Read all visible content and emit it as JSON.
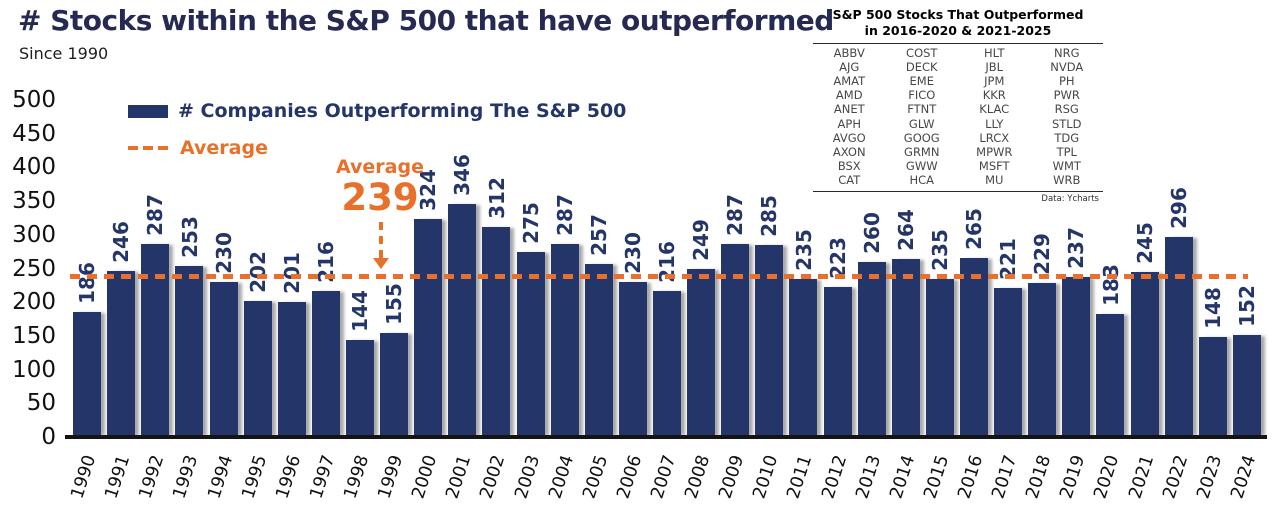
{
  "header": {
    "title": "# Stocks within the S&P 500 that have outperformed",
    "subtitle": "Since 1990"
  },
  "legend": {
    "series_label": "# Companies Outperforming The S&P 500",
    "average_label": "Average"
  },
  "annotation": {
    "label": "Average",
    "value": "239"
  },
  "colors": {
    "bar_navy": "#24356a",
    "accent_orange": "#e8702a",
    "title_navy": "#262a52",
    "axis_black": "#141414"
  },
  "chart_data": {
    "type": "bar",
    "title": "# Stocks within the S&P 500 that have outperformed",
    "subtitle": "Since 1990",
    "categories": [
      "1990",
      "1991",
      "1992",
      "1993",
      "1994",
      "1995",
      "1996",
      "1997",
      "1998",
      "1999",
      "2000",
      "2001",
      "2002",
      "2003",
      "2004",
      "2005",
      "2006",
      "2007",
      "2008",
      "2009",
      "2010",
      "2011",
      "2012",
      "2013",
      "2014",
      "2015",
      "2016",
      "2017",
      "2018",
      "2019",
      "2020",
      "2021",
      "2022",
      "2023",
      "2024"
    ],
    "values": [
      186,
      246,
      287,
      253,
      230,
      202,
      201,
      216,
      144,
      155,
      324,
      346,
      312,
      275,
      287,
      257,
      230,
      216,
      249,
      287,
      285,
      235,
      223,
      260,
      264,
      235,
      265,
      221,
      229,
      237,
      183,
      245,
      296,
      148,
      152
    ],
    "average": 239,
    "series_name": "# Companies Outperforming The S&P 500",
    "xlabel": "",
    "ylabel": "",
    "ylim": [
      0,
      500
    ],
    "ytick_step": 50,
    "grid": false,
    "legend_position": "top-left",
    "bar_labels": "rotated-above-bars"
  },
  "table": {
    "title_line1": "S&P 500 Stocks That Outperformed",
    "title_line2": "in 2016-2020 & 2021-2025",
    "rows": [
      [
        "ABBV",
        "COST",
        "HLT",
        "NRG"
      ],
      [
        "AJG",
        "DECK",
        "JBL",
        "NVDA"
      ],
      [
        "AMAT",
        "EME",
        "JPM",
        "PH"
      ],
      [
        "AMD",
        "FICO",
        "KKR",
        "PWR"
      ],
      [
        "ANET",
        "FTNT",
        "KLAC",
        "RSG"
      ],
      [
        "APH",
        "GLW",
        "LLY",
        "STLD"
      ],
      [
        "AVGO",
        "GOOG",
        "LRCX",
        "TDG"
      ],
      [
        "AXON",
        "GRMN",
        "MPWR",
        "TPL"
      ],
      [
        "BSX",
        "GWW",
        "MSFT",
        "WMT"
      ],
      [
        "CAT",
        "HCA",
        "MU",
        "WRB"
      ]
    ],
    "source": "Data: Ycharts"
  }
}
